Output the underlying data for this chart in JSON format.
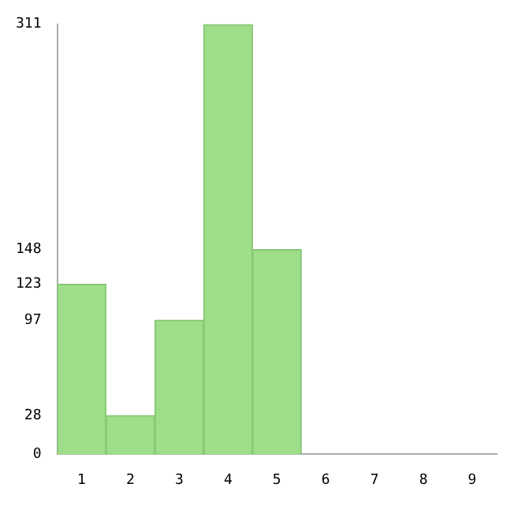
{
  "chart_data": {
    "type": "bar",
    "categories": [
      "1",
      "2",
      "3",
      "4",
      "5",
      "6",
      "7",
      "8",
      "9"
    ],
    "values": [
      123,
      28,
      97,
      311,
      148,
      0,
      0,
      0,
      0
    ],
    "color": "#9ede8a",
    "ylim": [
      0,
      311
    ],
    "yticks": [
      0,
      28,
      97,
      123,
      148,
      311
    ],
    "grid": false,
    "legend": false
  }
}
